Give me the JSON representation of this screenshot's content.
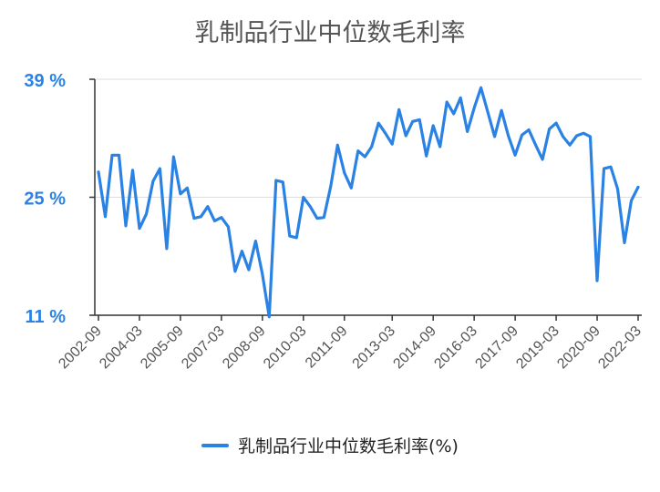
{
  "chart_data": {
    "type": "line",
    "title": "乳制品行业中位数毛利率",
    "xlabel": "",
    "ylabel": "",
    "ylim": [
      11,
      39
    ],
    "yticks": [
      11,
      25,
      39
    ],
    "ytick_labels": [
      "11 %",
      "25 %",
      "39 %"
    ],
    "xtick_labels": [
      "2002-09",
      "2004-03",
      "2005-09",
      "2007-03",
      "2008-09",
      "2010-03",
      "2011-09",
      "2013-03",
      "2014-09",
      "2016-03",
      "2017-09",
      "2019-03",
      "2020-09",
      "2022-03"
    ],
    "grid": true,
    "legend_position": "bottom",
    "series": [
      {
        "name": "乳制品行业中位数毛利率(%)",
        "color": "#2a82e4",
        "values": [
          28.0,
          22.7,
          30.0,
          30.0,
          21.6,
          28.2,
          21.3,
          23.0,
          26.9,
          28.4,
          18.9,
          29.8,
          25.4,
          26.1,
          22.5,
          22.7,
          23.9,
          22.2,
          22.6,
          21.5,
          16.2,
          18.6,
          16.4,
          19.8,
          15.9,
          10.8,
          27.0,
          26.8,
          20.4,
          20.2,
          25.0,
          23.9,
          22.5,
          22.6,
          26.3,
          31.2,
          27.9,
          26.1,
          30.5,
          29.8,
          31.0,
          33.8,
          32.6,
          31.3,
          35.4,
          32.3,
          34.0,
          34.2,
          29.9,
          33.5,
          31.0,
          36.3,
          34.9,
          36.8,
          32.8,
          35.6,
          38.0,
          35.1,
          32.2,
          35.3,
          32.3,
          30.0,
          32.4,
          33.0,
          31.2,
          29.5,
          33.1,
          33.8,
          32.2,
          31.2,
          32.3,
          32.6,
          32.2,
          15.1,
          28.4,
          28.6,
          26.0,
          19.6,
          24.6,
          26.2
        ]
      }
    ]
  }
}
